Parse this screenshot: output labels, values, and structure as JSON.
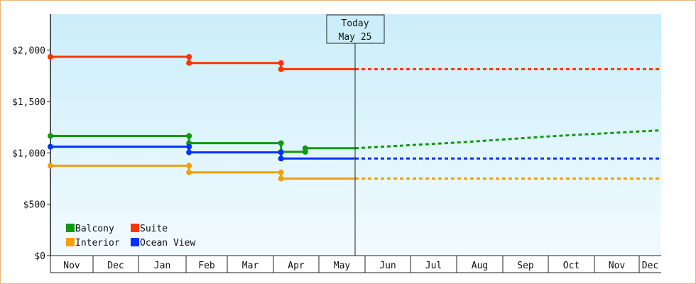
{
  "chart_data": {
    "type": "line",
    "y_ticks": [
      "$0",
      "$500",
      "$1,000",
      "$1,500",
      "$2,000"
    ],
    "ylim": [
      0,
      2350
    ],
    "x_months": [
      "Nov",
      "Dec",
      "Jan",
      "Feb",
      "Mar",
      "Apr",
      "May",
      "Jun",
      "Jul",
      "Aug",
      "Sep",
      "Oct",
      "Nov",
      "Dec"
    ],
    "today": {
      "line1": "Today",
      "line2": "May 25"
    },
    "grid": false,
    "legend_position": "bottom-left",
    "series": [
      {
        "name": "Suite",
        "color": "#ff3300",
        "history": [
          [
            "Nov 1",
            1935
          ],
          [
            "Feb 3",
            1935
          ],
          [
            "Feb 3",
            1875
          ],
          [
            "Apr 6",
            1875
          ],
          [
            "Apr 6",
            1815
          ],
          [
            "May 25",
            1815
          ]
        ],
        "markers": [
          [
            "Nov 1",
            1935
          ],
          [
            "Feb 3",
            1935
          ],
          [
            "Feb 3",
            1875
          ],
          [
            "Apr 6",
            1875
          ],
          [
            "Apr 6",
            1815
          ]
        ],
        "forecast": [
          [
            "May 25",
            1815
          ],
          [
            "Dec 15",
            1815
          ]
        ]
      },
      {
        "name": "Balcony",
        "color": "#119911",
        "history": [
          [
            "Nov 1",
            1165
          ],
          [
            "Feb 3",
            1165
          ],
          [
            "Feb 3",
            1095
          ],
          [
            "Apr 6",
            1095
          ],
          [
            "Apr 6",
            1010
          ],
          [
            "Apr 22",
            1010
          ],
          [
            "Apr 22",
            1045
          ],
          [
            "May 25",
            1045
          ]
        ],
        "markers": [
          [
            "Nov 1",
            1165
          ],
          [
            "Feb 3",
            1165
          ],
          [
            "Feb 3",
            1095
          ],
          [
            "Apr 6",
            1095
          ],
          [
            "Apr 6",
            1010
          ],
          [
            "Apr 22",
            1010
          ],
          [
            "Apr 22",
            1045
          ]
        ],
        "forecast": [
          [
            "May 25",
            1045
          ],
          [
            "Jul 1",
            1075
          ],
          [
            "Aug 1",
            1100
          ],
          [
            "Sep 1",
            1130
          ],
          [
            "Oct 1",
            1160
          ],
          [
            "Nov 1",
            1185
          ],
          [
            "Dec 15",
            1220
          ]
        ]
      },
      {
        "name": "Ocean View",
        "color": "#0033ff",
        "history": [
          [
            "Nov 1",
            1060
          ],
          [
            "Feb 3",
            1060
          ],
          [
            "Feb 3",
            1005
          ],
          [
            "Apr 6",
            1005
          ],
          [
            "Apr 6",
            945
          ],
          [
            "May 25",
            945
          ]
        ],
        "markers": [
          [
            "Nov 1",
            1060
          ],
          [
            "Feb 3",
            1060
          ],
          [
            "Feb 3",
            1005
          ],
          [
            "Apr 6",
            1005
          ],
          [
            "Apr 6",
            945
          ]
        ],
        "forecast": [
          [
            "May 25",
            945
          ],
          [
            "Dec 15",
            945
          ]
        ]
      },
      {
        "name": "Interior",
        "color": "#f0a010",
        "history": [
          [
            "Nov 1",
            875
          ],
          [
            "Feb 3",
            875
          ],
          [
            "Feb 3",
            810
          ],
          [
            "Apr 6",
            810
          ],
          [
            "Apr 6",
            750
          ],
          [
            "May 25",
            750
          ]
        ],
        "markers": [
          [
            "Nov 1",
            875
          ],
          [
            "Feb 3",
            875
          ],
          [
            "Feb 3",
            810
          ],
          [
            "Apr 6",
            810
          ],
          [
            "Apr 6",
            750
          ]
        ],
        "forecast": [
          [
            "May 25",
            750
          ],
          [
            "Dec 15",
            750
          ]
        ]
      }
    ],
    "legend": [
      {
        "name": "Balcony",
        "color": "#119911"
      },
      {
        "name": "Suite",
        "color": "#ff3300"
      },
      {
        "name": "Interior",
        "color": "#f0a010"
      },
      {
        "name": "Ocean View",
        "color": "#0033ff"
      }
    ]
  }
}
